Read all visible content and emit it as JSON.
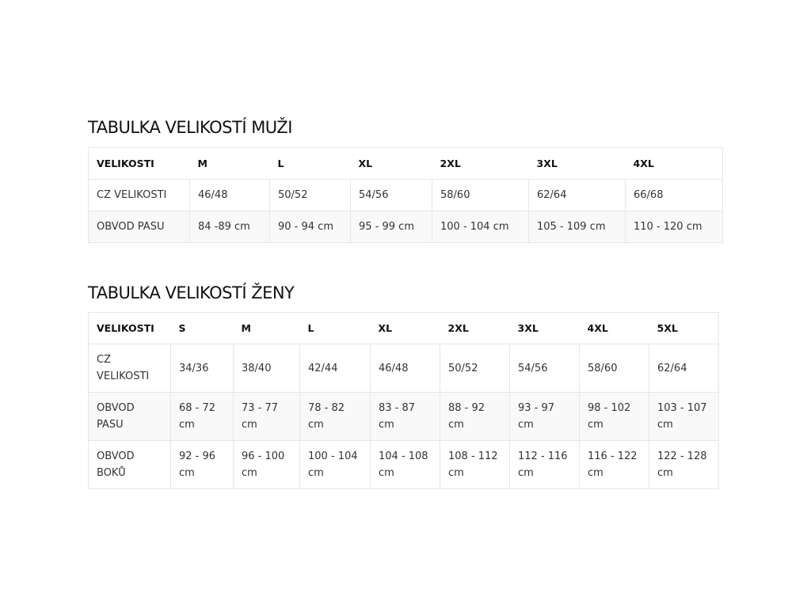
{
  "men": {
    "title": "TABULKA VELIKOSTÍ MUŽI",
    "rows": [
      [
        "VELIKOSTI",
        "M",
        "L",
        "XL",
        "2XL",
        "3XL",
        "4XL"
      ],
      [
        "CZ VELIKOSTI",
        "46/48",
        "50/52",
        "54/56",
        "58/60",
        "62/64",
        "66/68"
      ],
      [
        "OBVOD PASU",
        "84 -89 cm",
        "90 - 94 cm",
        "95 - 99 cm",
        "100 - 104 cm",
        "105 - 109 cm",
        "110 - 120 cm"
      ]
    ]
  },
  "women": {
    "title": "TABULKA VELIKOSTÍ ŽENY",
    "rows": [
      [
        "VELIKOSTI",
        "S",
        "M",
        "L",
        "XL",
        "2XL",
        "3XL",
        "4XL",
        "5XL"
      ],
      [
        "CZ VELIKOSTI",
        " 34/36",
        "38/40",
        " 42/44",
        "46/48",
        "50/52",
        "54/56",
        "58/60",
        "62/64"
      ],
      [
        "OBVOD PASU",
        "68 - 72 cm",
        "73 - 77 cm",
        "78 - 82 cm",
        "83 - 87 cm",
        "88 - 92 cm",
        "93 - 97 cm",
        "98 - 102 cm",
        "103 - 107 cm"
      ],
      [
        "OBVOD BOKŮ",
        "92 - 96 cm",
        "96 - 100 cm",
        "100 - 104 cm",
        "104 - 108 cm",
        "108 - 112 cm",
        "112 - 116 cm",
        "116 - 122 cm",
        "122 - 128 cm"
      ]
    ]
  }
}
